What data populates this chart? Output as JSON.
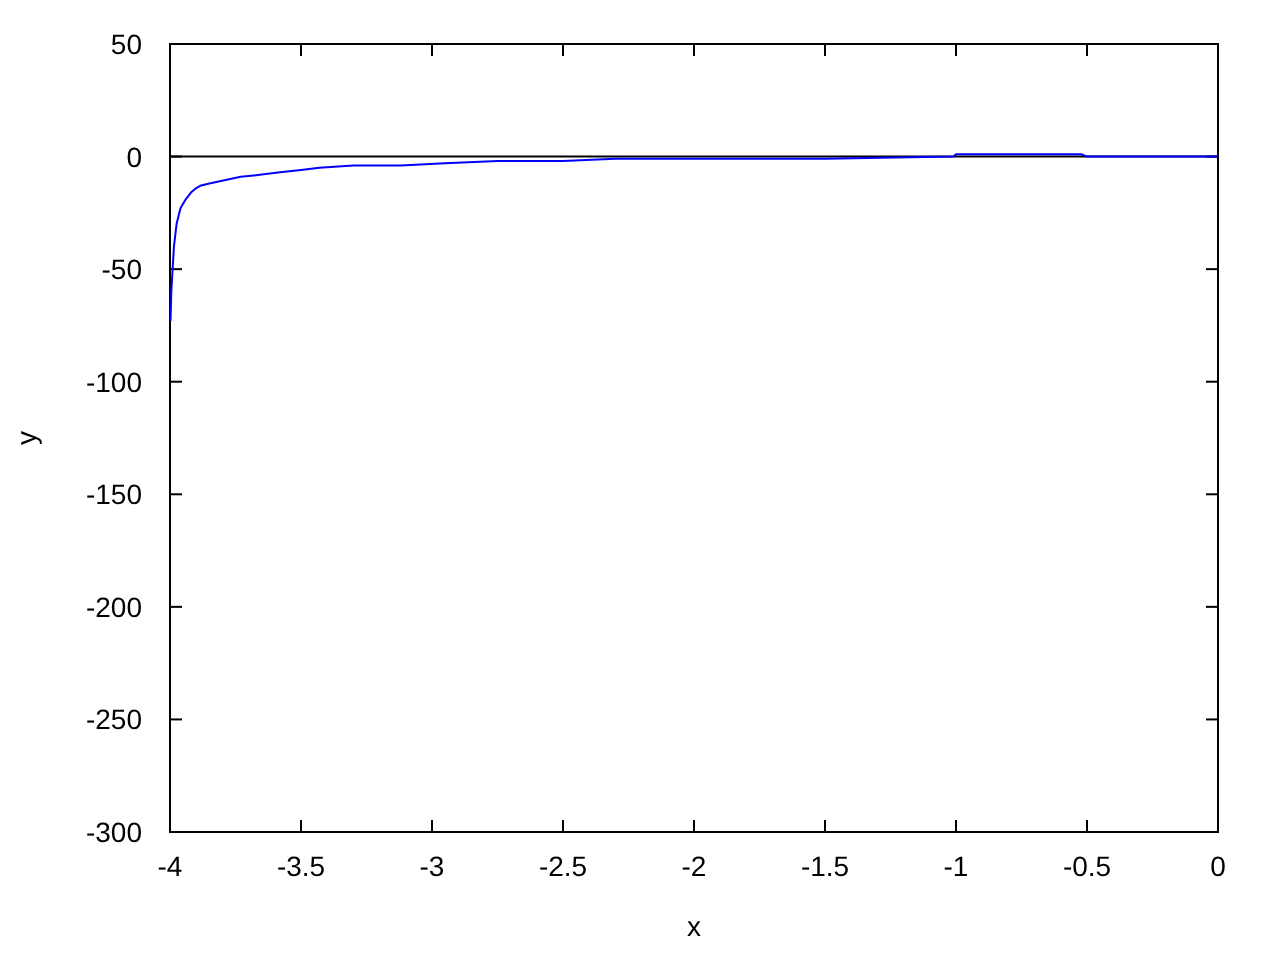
{
  "chart_data": {
    "type": "line",
    "xlabel": "x",
    "ylabel": "y",
    "xlim": [
      -4,
      0
    ],
    "ylim": [
      -300,
      50
    ],
    "xticks": [
      -4,
      -3.5,
      -3,
      -2.5,
      -2,
      -1.5,
      -1,
      -0.5,
      0
    ],
    "yticks": [
      -300,
      -250,
      -200,
      -150,
      -100,
      -50,
      0,
      50
    ],
    "grid": false,
    "ref_lines": [
      {
        "axis": "y",
        "value": 0,
        "color": "#000000"
      }
    ],
    "series": [
      {
        "color": "#0000ff",
        "x": [
          -3.998,
          -3.995,
          -3.99,
          -3.985,
          -3.975,
          -3.96,
          -3.94,
          -3.92,
          -3.9,
          -3.885,
          -3.85,
          -3.81,
          -3.77,
          -3.73,
          -3.65,
          -3.58,
          -3.5,
          -3.43,
          -3.3,
          -3.12,
          -2.95,
          -2.75,
          -2.5,
          -2.3,
          -2,
          -1.5,
          -1.01,
          -1,
          -0.75,
          -0.52,
          -0.5,
          -0.25,
          0
        ],
        "values": [
          -73,
          -60,
          -50,
          -40,
          -30,
          -23,
          -19,
          -16,
          -14,
          -13,
          -12,
          -11,
          -10,
          -9,
          -8,
          -7,
          -6,
          -5,
          -4,
          -4,
          -3,
          -2,
          -2,
          -1,
          -1,
          -1,
          0,
          1,
          1,
          1,
          0,
          0,
          0
        ]
      }
    ]
  }
}
